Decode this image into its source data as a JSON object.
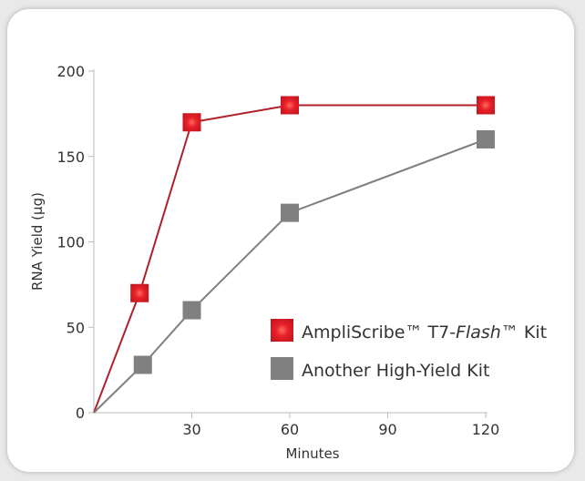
{
  "chart_data": {
    "type": "line",
    "xlabel": "Minutes",
    "ylabel": "RNA Yield (µg)",
    "xlim": [
      0,
      120
    ],
    "ylim": [
      0,
      200
    ],
    "xticks": [
      30,
      60,
      90,
      120
    ],
    "yticks": [
      0,
      50,
      100,
      150,
      200
    ],
    "grid": false,
    "legend_placement": "bottom-right",
    "series": [
      {
        "name": "AmpliScribe™ T7-Flash™ Kit",
        "legend_parts": [
          "AmpliScribe™ T7-",
          "Flash",
          "™ Kit"
        ],
        "color": "#d0202a",
        "line_color": "#b0202a",
        "marker": "square",
        "x": [
          0,
          14,
          30,
          60,
          120
        ],
        "y": [
          0,
          70,
          170,
          180,
          180
        ]
      },
      {
        "name": "Another High-Yield Kit",
        "color": "#808080",
        "line_color": "#808080",
        "marker": "square",
        "x": [
          0,
          15,
          30,
          60,
          120
        ],
        "y": [
          0,
          28,
          60,
          117,
          160
        ]
      }
    ]
  }
}
